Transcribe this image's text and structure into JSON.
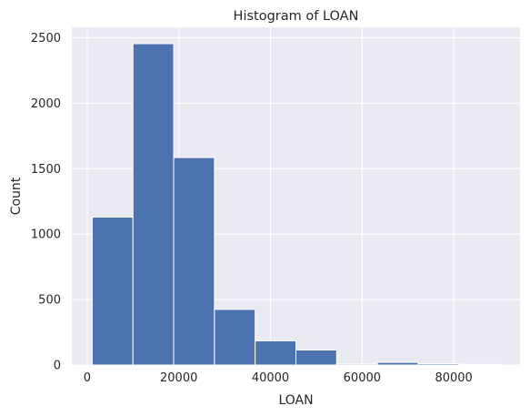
{
  "chart_data": {
    "type": "bar",
    "title": "Histogram of LOAN",
    "xlabel": "LOAN",
    "ylabel": "Count",
    "bin_edges": [
      1100,
      9990,
      18880,
      27770,
      36660,
      45550,
      54440,
      63330,
      72220,
      81110,
      90000
    ],
    "values": [
      1130,
      2455,
      1585,
      425,
      185,
      115,
      8,
      20,
      10,
      5
    ],
    "xlim": [
      -3350,
      94450
    ],
    "ylim": [
      0,
      2580
    ],
    "x_ticks": [
      0,
      20000,
      40000,
      60000,
      80000
    ],
    "y_ticks": [
      0,
      500,
      1000,
      1500,
      2000,
      2500
    ],
    "grid": true,
    "colors": {
      "bar": "#4c72b0",
      "bar_edge": "#ffffff",
      "plot_background": "#eaeaf2",
      "grid": "#ffffff",
      "text": "#262626"
    }
  }
}
